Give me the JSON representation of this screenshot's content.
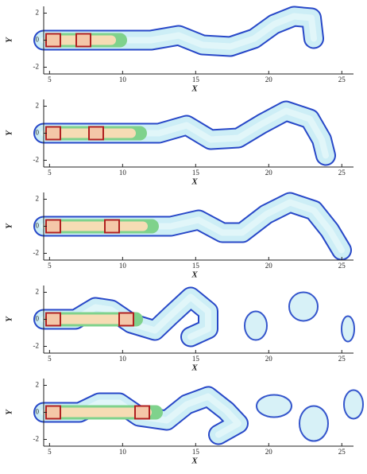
{
  "chart_data": [
    {
      "type": "contour",
      "xlabel": "X",
      "ylabel": "Y",
      "xlim": [
        4.6,
        25.8
      ],
      "ylim": [
        -2.5,
        2.5
      ],
      "xticks": [
        5,
        10,
        15,
        20,
        25
      ],
      "yticks": [
        2,
        0,
        -2
      ]
    },
    {
      "type": "contour",
      "xlabel": "X",
      "ylabel": "Y",
      "xlim": [
        4.6,
        25.8
      ],
      "ylim": [
        -2.5,
        2.5
      ],
      "xticks": [
        5,
        10,
        15,
        20,
        25
      ],
      "yticks": [
        2,
        0,
        -2
      ]
    },
    {
      "type": "contour",
      "xlabel": "X",
      "ylabel": "Y",
      "xlim": [
        4.6,
        25.8
      ],
      "ylim": [
        -2.5,
        2.5
      ],
      "xticks": [
        5,
        10,
        15,
        20,
        25
      ],
      "yticks": [
        2,
        0,
        -2
      ]
    },
    {
      "type": "contour",
      "xlabel": "X",
      "ylabel": "Y",
      "xlim": [
        4.6,
        25.8
      ],
      "ylim": [
        -2.5,
        2.5
      ],
      "xticks": [
        5,
        10,
        15,
        20,
        25
      ],
      "yticks": [
        2,
        0,
        -2
      ]
    },
    {
      "type": "contour",
      "xlabel": "X",
      "ylabel": "Y",
      "xlim": [
        4.6,
        25.8
      ],
      "ylim": [
        -2.5,
        2.5
      ],
      "xticks": [
        5,
        10,
        15,
        20,
        25
      ],
      "yticks": [
        2,
        0,
        -2
      ]
    }
  ]
}
